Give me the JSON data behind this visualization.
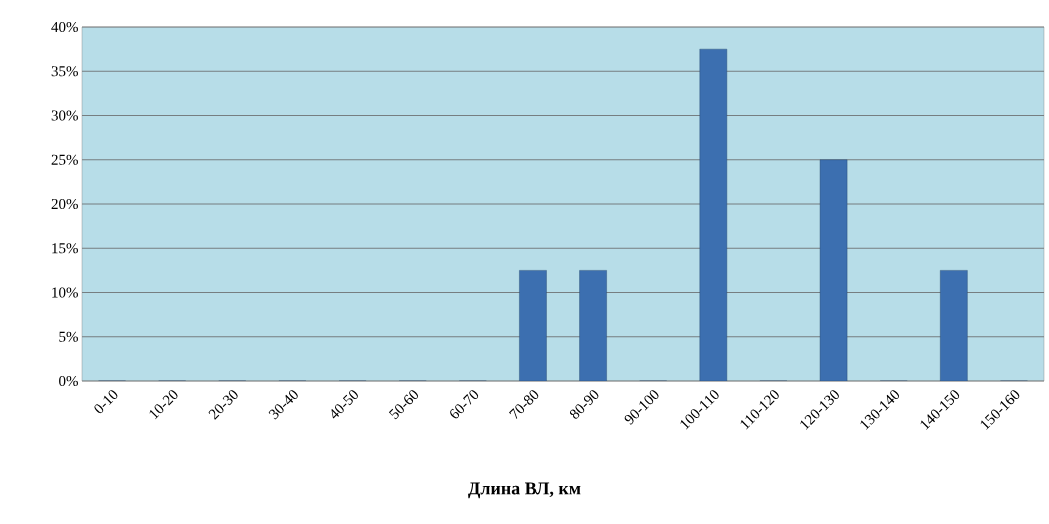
{
  "chart_data": {
    "type": "bar",
    "xlabel": "Длина ВЛ, км",
    "categories": [
      "0-10",
      "10-20",
      "20-30",
      "30-40",
      "40-50",
      "50-60",
      "60-70",
      "70-80",
      "80-90",
      "90-100",
      "100-110",
      "110-120",
      "120-130",
      "130-140",
      "140-150",
      "150-160"
    ],
    "values": [
      0,
      0,
      0,
      0,
      0,
      0,
      0,
      12.5,
      12.5,
      0,
      37.5,
      0,
      25,
      0,
      12.5,
      0
    ],
    "color": "#3c6fb0",
    "ylim": [
      0,
      40
    ],
    "yticks": [
      {
        "value": 0,
        "label": "0%"
      },
      {
        "value": 5,
        "label": "5%"
      },
      {
        "value": 10,
        "label": "10%"
      },
      {
        "value": 15,
        "label": "15%"
      },
      {
        "value": 20,
        "label": "20%"
      },
      {
        "value": 25,
        "label": "25%"
      },
      {
        "value": 30,
        "label": "30%"
      },
      {
        "value": 35,
        "label": "35%"
      },
      {
        "value": 40,
        "label": "40%"
      }
    ],
    "grid": "y"
  }
}
